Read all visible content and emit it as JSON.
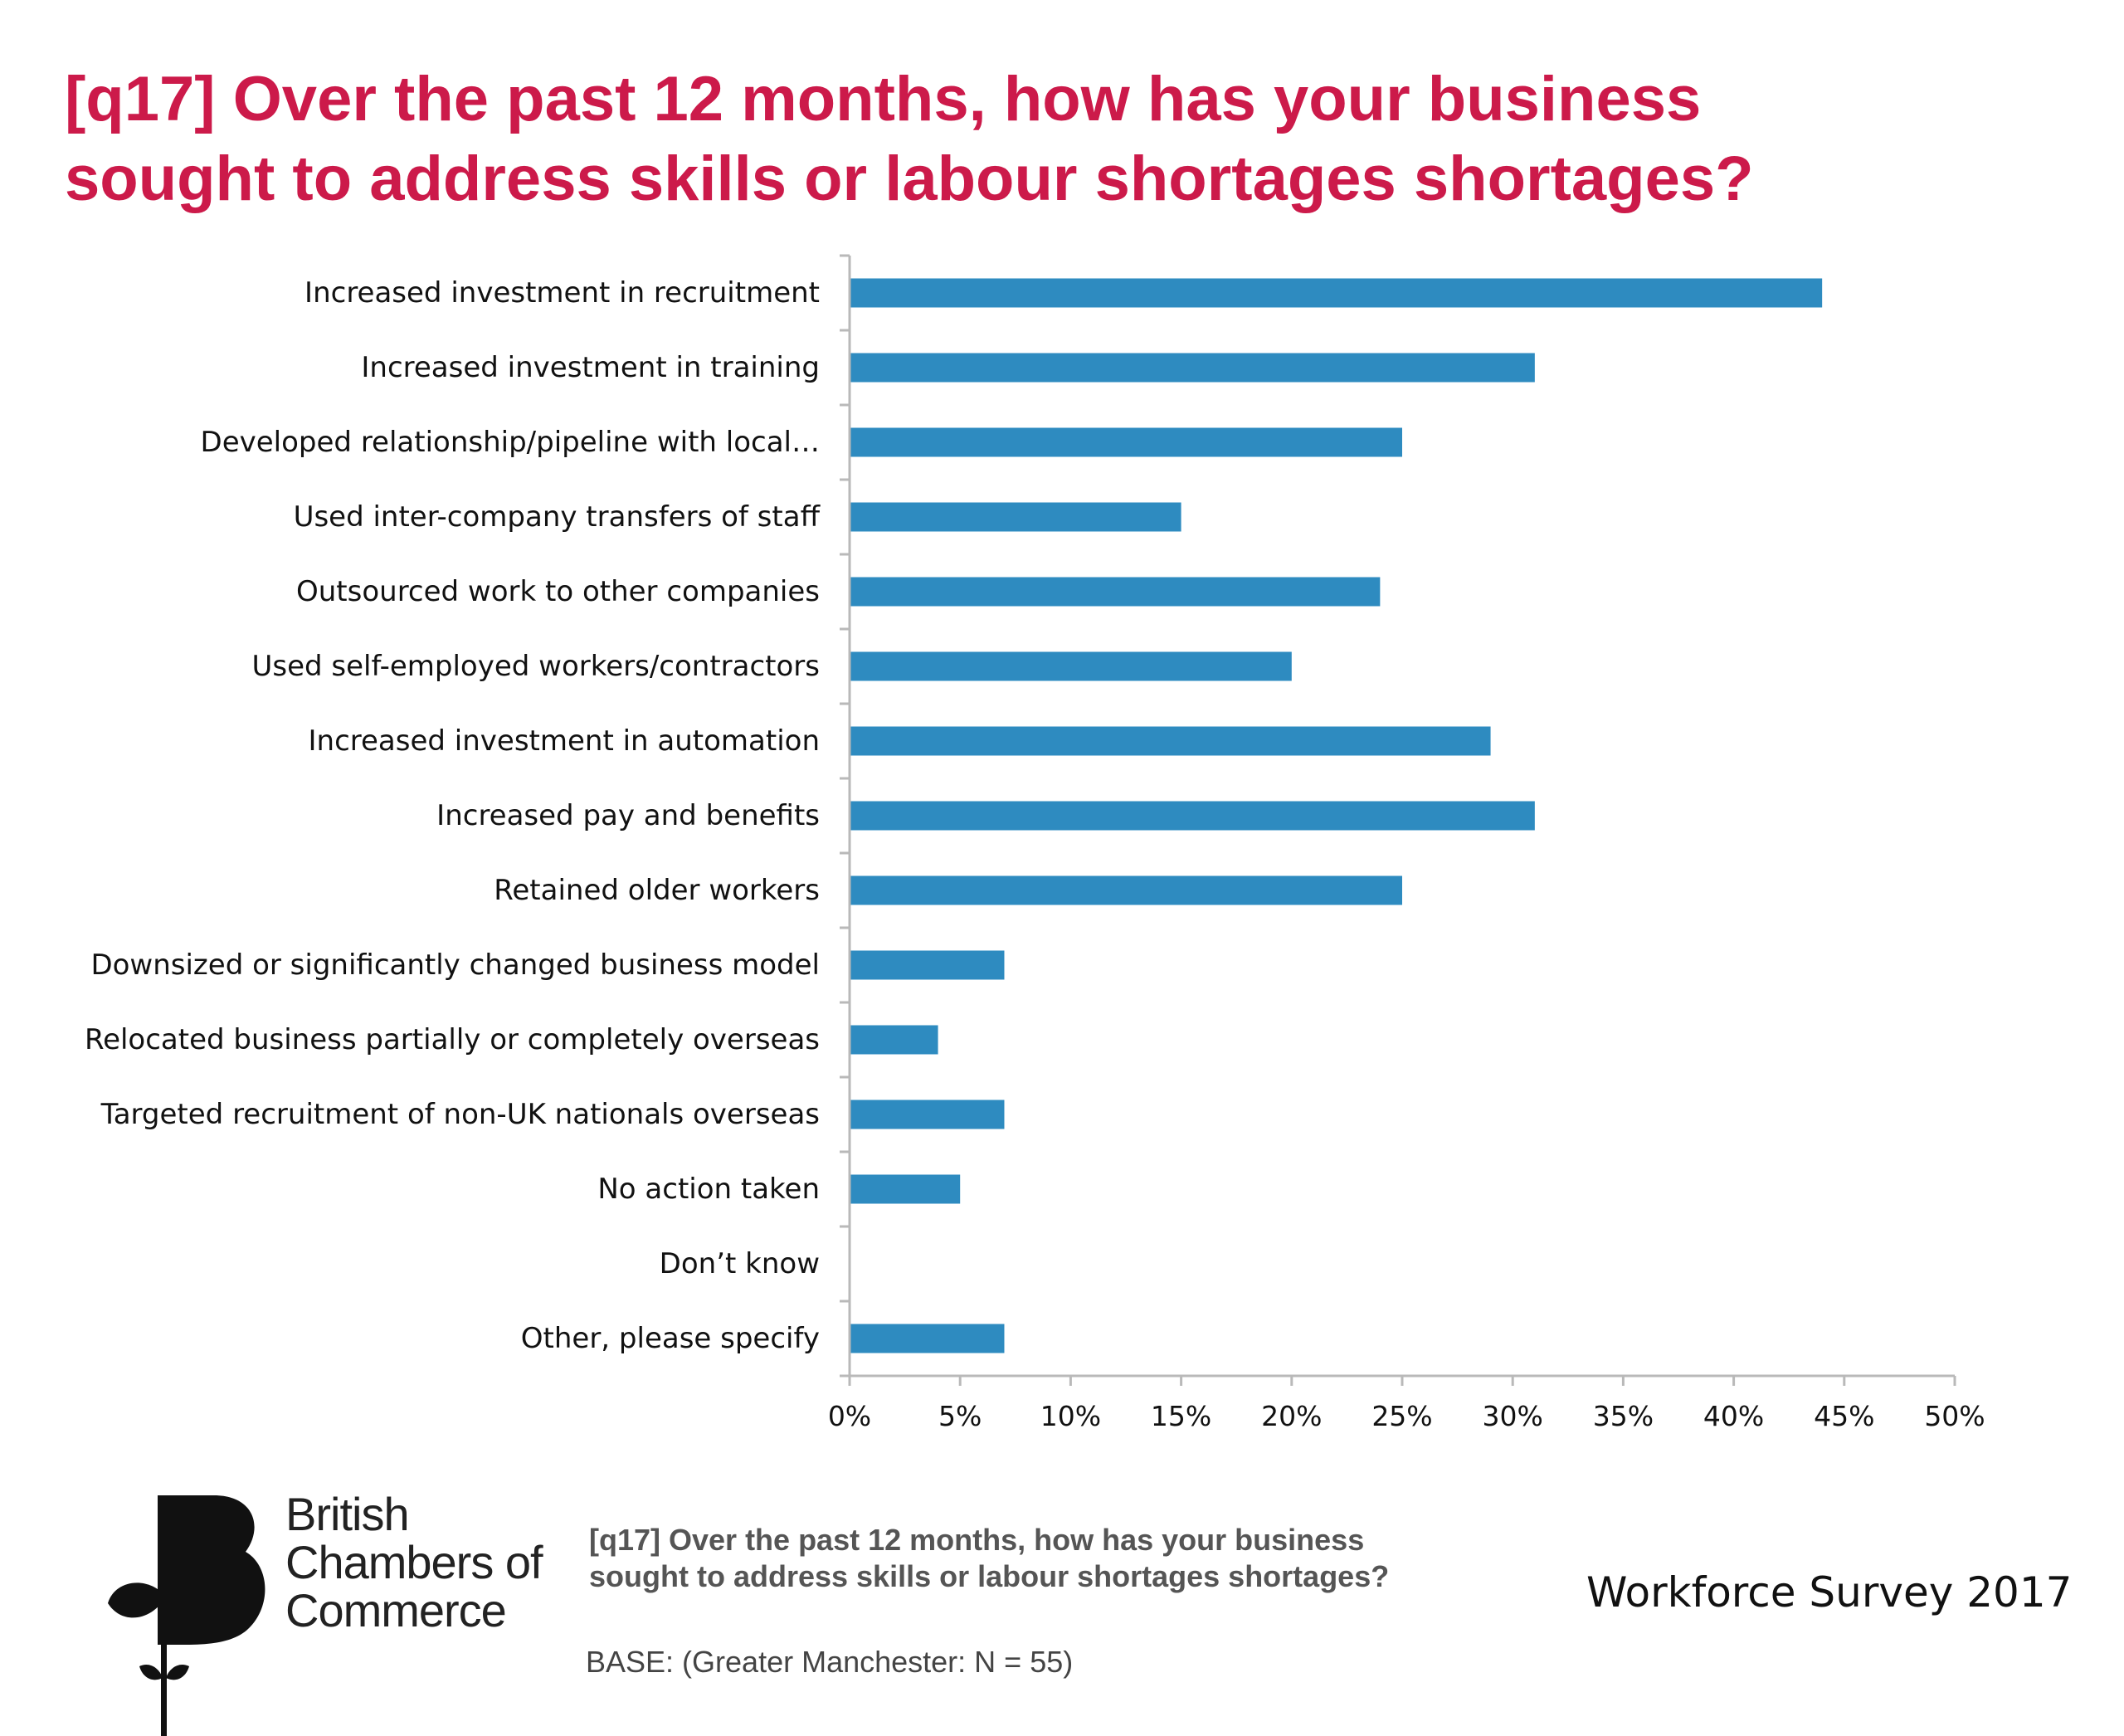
{
  "title_lines": [
    "[q17] Over the past 12 months, how has your business",
    "sought to address skills or labour shortages shortages?"
  ],
  "chart_data": {
    "type": "bar",
    "orientation": "horizontal",
    "categories": [
      "Increased investment in recruitment",
      "Increased investment in training",
      "Developed relationship/pipeline with local…",
      "Used inter-company transfers of staff",
      "Outsourced work to other companies",
      "Used self-employed workers/contractors",
      "Increased investment in automation",
      "Increased pay and benefits",
      "Retained older workers",
      "Downsized or significantly changed business model",
      "Relocated business partially or completely overseas",
      "Targeted recruitment of non-UK nationals overseas",
      "No action taken",
      "Don’t know",
      "Other, please specify"
    ],
    "values": [
      44,
      31,
      25,
      15,
      24,
      20,
      29,
      31,
      25,
      7,
      4,
      7,
      5,
      0,
      7
    ],
    "value_unit": "%",
    "xlim": [
      0,
      50
    ],
    "xticks": [
      0,
      5,
      10,
      15,
      20,
      25,
      30,
      35,
      40,
      45,
      50
    ],
    "xtick_labels": [
      "0%",
      "5%",
      "10%",
      "15%",
      "20%",
      "25%",
      "30%",
      "35%",
      "40%",
      "45%",
      "50%"
    ],
    "bar_color": "#2e8bc0",
    "grid": false,
    "legend": "none"
  },
  "footer": {
    "logo_lines": [
      "British",
      "Chambers of",
      "Commerce"
    ],
    "question_lines": [
      "[q17] Over the past 12 months, how has your business",
      "sought to address skills or labour shortages shortages?"
    ],
    "base": "BASE: (Greater Manchester: N = 55)",
    "survey": "Workforce Survey 2017"
  }
}
